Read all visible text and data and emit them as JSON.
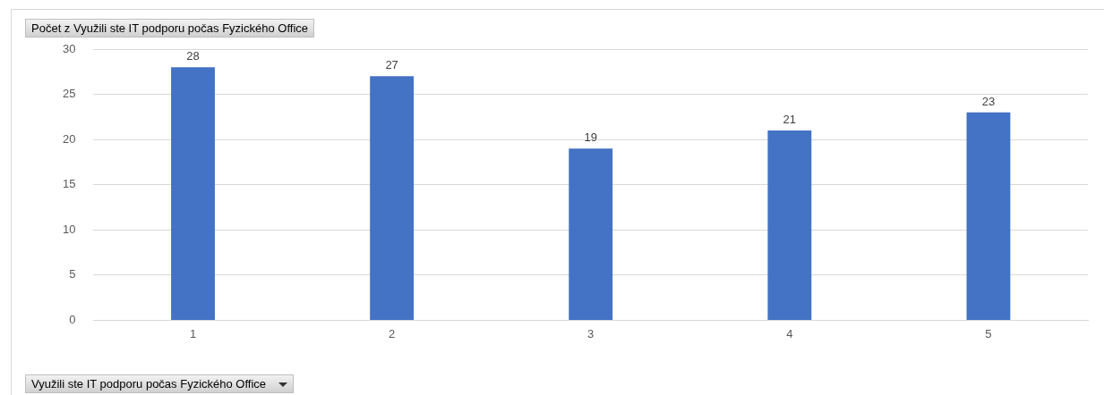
{
  "chart_data": {
    "type": "bar",
    "title": "Počet z Využili ste IT podporu počas Fyzického Office",
    "xlabel": "Využili ste IT podporu počas Fyzického Office",
    "categories": [
      "1",
      "2",
      "3",
      "4",
      "5"
    ],
    "values": [
      28,
      27,
      19,
      21,
      23
    ],
    "color": "#4472c4",
    "ylim": [
      0,
      30
    ],
    "yticks": [
      0,
      5,
      10,
      15,
      20,
      25,
      30
    ],
    "grid": "y",
    "legend": false,
    "data_labels": true
  }
}
